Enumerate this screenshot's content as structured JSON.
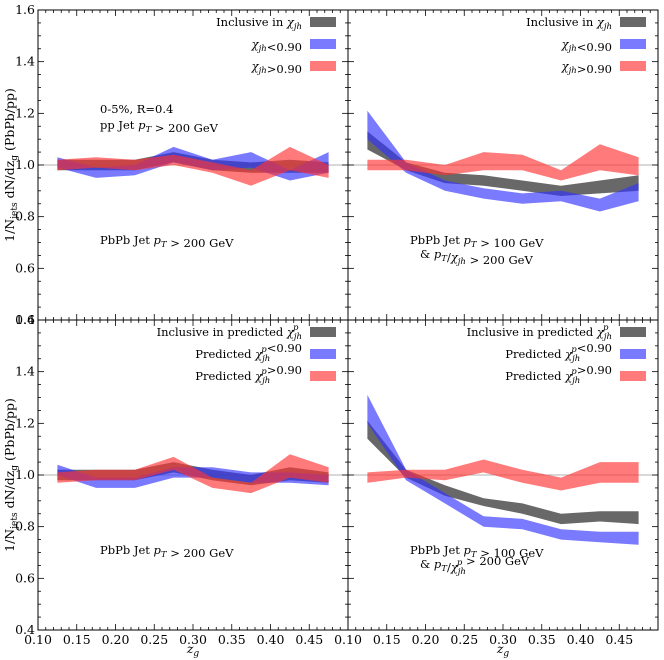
{
  "figure": {
    "ylabel": "1/N_jets dN/dz_g (PbPb/pp)",
    "xlabel": "z_g"
  },
  "colors": {
    "inclusive": "#4d4d4d",
    "low": "#3333ff",
    "high": "#ff3333",
    "overlap": "#8b1a4a"
  },
  "chart_data": [
    {
      "type": "area",
      "panel": "top-left",
      "xlim": [
        0.1,
        0.5
      ],
      "ylim": [
        0.4,
        1.6
      ],
      "xticks": [
        "0.10",
        "0.15",
        "0.20",
        "0.25",
        "0.30",
        "0.35",
        "0.40",
        "0.45"
      ],
      "yticks": [
        "0.4",
        "0.6",
        "0.8",
        "1.0",
        "1.2",
        "1.4",
        "1.6"
      ],
      "reference_line": 1.0,
      "labels": [
        "0-5%, R=0.4",
        "pp Jet p_T > 200 GeV",
        "PbPb Jet p_T > 200 GeV"
      ],
      "legend": [
        "Inclusive in χ_jh",
        "χ_jh<0.90",
        "χ_jh>0.90"
      ],
      "x": [
        0.125,
        0.175,
        0.225,
        0.275,
        0.325,
        0.375,
        0.425,
        0.475
      ],
      "series": [
        {
          "name": "Inclusive in χ_jh",
          "key": "inclusive",
          "low": [
            0.98,
            0.98,
            0.98,
            1.01,
            0.98,
            0.97,
            0.97,
            0.97
          ],
          "high": [
            1.02,
            1.02,
            1.02,
            1.05,
            1.02,
            1.01,
            1.02,
            1.01
          ]
        },
        {
          "name": "χ_jh<0.90",
          "key": "low",
          "low": [
            0.99,
            0.95,
            0.96,
            1.01,
            0.98,
            0.99,
            0.94,
            0.97
          ],
          "high": [
            1.03,
            0.99,
            1.0,
            1.07,
            1.02,
            1.05,
            0.98,
            1.05
          ]
        },
        {
          "name": "χ_jh>0.90",
          "key": "high",
          "low": [
            0.98,
            0.99,
            0.98,
            1.0,
            0.97,
            0.92,
            0.98,
            0.95
          ],
          "high": [
            1.02,
            1.03,
            1.02,
            1.04,
            1.01,
            0.98,
            1.07,
            1.0
          ]
        }
      ]
    },
    {
      "type": "area",
      "panel": "top-right",
      "xlim": [
        0.1,
        0.5
      ],
      "ylim": [
        0.4,
        1.6
      ],
      "reference_line": 1.0,
      "labels": [
        "PbPb Jet p_T > 100 GeV",
        "& p_T/χ_jh > 200 GeV"
      ],
      "legend": [
        "Inclusive in χ_jh",
        "χ_jh<0.90",
        "χ_jh>0.90"
      ],
      "x": [
        0.125,
        0.175,
        0.225,
        0.275,
        0.325,
        0.375,
        0.425,
        0.475
      ],
      "series": [
        {
          "name": "Inclusive in χ_jh",
          "key": "inclusive",
          "low": [
            1.06,
            0.98,
            0.93,
            0.92,
            0.9,
            0.88,
            0.89,
            0.9
          ],
          "high": [
            1.13,
            1.01,
            0.97,
            0.96,
            0.94,
            0.92,
            0.94,
            0.96
          ]
        },
        {
          "name": "χ_jh<0.90",
          "key": "low",
          "low": [
            1.1,
            0.97,
            0.9,
            0.87,
            0.85,
            0.86,
            0.82,
            0.86
          ],
          "high": [
            1.21,
            1.01,
            0.94,
            0.91,
            0.89,
            0.9,
            0.87,
            0.93
          ]
        },
        {
          "name": "χ_jh>0.90",
          "key": "high",
          "low": [
            0.98,
            0.98,
            0.96,
            0.98,
            0.98,
            0.94,
            0.98,
            0.96
          ],
          "high": [
            1.02,
            1.02,
            1.0,
            1.05,
            1.04,
            0.98,
            1.08,
            1.03
          ]
        }
      ]
    },
    {
      "type": "area",
      "panel": "bottom-left",
      "xlim": [
        0.1,
        0.5
      ],
      "ylim": [
        0.4,
        1.6
      ],
      "xticks": [
        "0.10",
        "0.15",
        "0.20",
        "0.25",
        "0.30",
        "0.35",
        "0.40",
        "0.45"
      ],
      "yticks": [
        "0.4",
        "0.6",
        "0.8",
        "1.0",
        "1.2",
        "1.4",
        "1.6"
      ],
      "reference_line": 1.0,
      "labels": [
        "PbPb Jet p_T > 200 GeV"
      ],
      "legend": [
        "Inclusive in predicted χ^p_jh",
        "Predicted χ^p_jh<0.90",
        "Predicted χ^p_jh>0.90"
      ],
      "x": [
        0.125,
        0.175,
        0.225,
        0.275,
        0.325,
        0.375,
        0.425,
        0.475
      ],
      "series": [
        {
          "name": "Inclusive in predicted χ^p_jh",
          "key": "inclusive",
          "low": [
            0.98,
            0.98,
            0.98,
            1.01,
            0.98,
            0.96,
            0.98,
            0.97
          ],
          "high": [
            1.02,
            1.02,
            1.02,
            1.05,
            1.02,
            1.0,
            1.03,
            1.01
          ]
        },
        {
          "name": "Predicted χ^p_jh<0.90",
          "key": "low",
          "low": [
            1.0,
            0.95,
            0.95,
            0.99,
            0.99,
            0.97,
            0.97,
            0.96
          ],
          "high": [
            1.04,
            0.99,
            0.99,
            1.03,
            1.03,
            1.01,
            1.01,
            1.0
          ]
        },
        {
          "name": "Predicted χ^p_jh>0.90",
          "key": "high",
          "low": [
            0.97,
            0.98,
            0.98,
            1.02,
            0.95,
            0.93,
            0.99,
            0.97
          ],
          "high": [
            1.01,
            1.02,
            1.02,
            1.07,
            0.99,
            0.97,
            1.08,
            1.03
          ]
        }
      ]
    },
    {
      "type": "area",
      "panel": "bottom-right",
      "xlim": [
        0.1,
        0.5
      ],
      "ylim": [
        0.4,
        1.6
      ],
      "reference_line": 1.0,
      "labels": [
        "PbPb Jet p_T > 100 GeV",
        "& p_T/χ^p_jh > 200 GeV"
      ],
      "legend": [
        "Inclusive in predicted χ^p_jh",
        "Predicted χ^p_jh<0.90",
        "Predicted χ^p_jh>0.90"
      ],
      "x": [
        0.125,
        0.175,
        0.225,
        0.275,
        0.325,
        0.375,
        0.425,
        0.475
      ],
      "series": [
        {
          "name": "Inclusive in predicted χ^p_jh",
          "key": "inclusive",
          "low": [
            1.14,
            0.99,
            0.92,
            0.88,
            0.85,
            0.81,
            0.82,
            0.81
          ],
          "high": [
            1.21,
            1.02,
            0.96,
            0.91,
            0.89,
            0.85,
            0.86,
            0.86
          ]
        },
        {
          "name": "Predicted χ^p_jh<0.90",
          "key": "low",
          "low": [
            1.2,
            0.98,
            0.89,
            0.8,
            0.79,
            0.75,
            0.74,
            0.73
          ],
          "high": [
            1.31,
            1.02,
            0.93,
            0.84,
            0.83,
            0.79,
            0.78,
            0.78
          ]
        },
        {
          "name": "Predicted χ^p_jh>0.90",
          "key": "high",
          "low": [
            0.97,
            0.99,
            0.98,
            1.01,
            0.97,
            0.94,
            0.97,
            0.97
          ],
          "high": [
            1.01,
            1.02,
            1.02,
            1.06,
            1.02,
            0.99,
            1.05,
            1.05
          ]
        }
      ]
    }
  ]
}
